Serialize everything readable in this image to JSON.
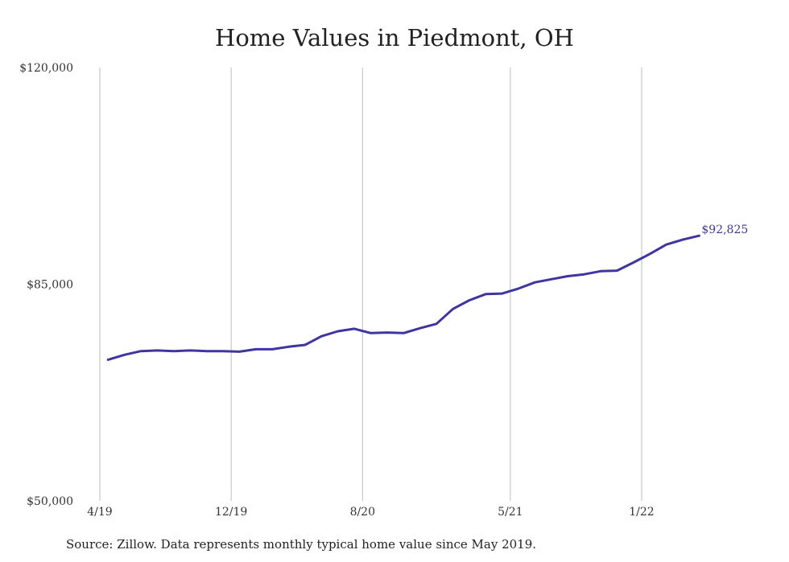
{
  "chart_data": {
    "type": "line",
    "title": "Home Values in Piedmont, OH",
    "xlabel": "",
    "ylabel": "",
    "x_tick_labels": [
      "4/19",
      "12/19",
      "8/20",
      "5/21",
      "1/22"
    ],
    "y_tick_labels": [
      "$120,000",
      "$85,000",
      "$50,000"
    ],
    "ylim": [
      50000,
      120000
    ],
    "grid": "vertical",
    "line_color": "#3f35a0",
    "end_label": "$92,825",
    "series": [
      {
        "x": [
          "5/19",
          "6/19",
          "7/19",
          "8/19",
          "9/19",
          "10/19",
          "11/19",
          "12/19",
          "1/20",
          "2/20",
          "3/20",
          "4/20",
          "5/20",
          "6/20",
          "7/20",
          "8/20",
          "9/20",
          "10/20",
          "11/20",
          "12/20",
          "1/21",
          "2/21",
          "3/21",
          "4/21",
          "5/21",
          "6/21",
          "7/21",
          "8/21",
          "9/21",
          "10/21",
          "11/21",
          "12/21",
          "1/22",
          "2/22",
          "3/22",
          "4/22",
          "5/22"
        ],
        "values": [
          72800,
          73600,
          74200,
          74300,
          74200,
          74300,
          74200,
          74200,
          74100,
          74500,
          74500,
          74900,
          75200,
          76600,
          77400,
          77800,
          77100,
          77200,
          77100,
          77900,
          78600,
          81000,
          82400,
          83400,
          83500,
          84300,
          85300,
          85800,
          86300,
          86600,
          87100,
          87200,
          88500,
          89900,
          91400,
          92200,
          92825
        ]
      }
    ]
  },
  "footer": {
    "source": "Source: Zillow. Data represents monthly typical home value since May 2019."
  }
}
